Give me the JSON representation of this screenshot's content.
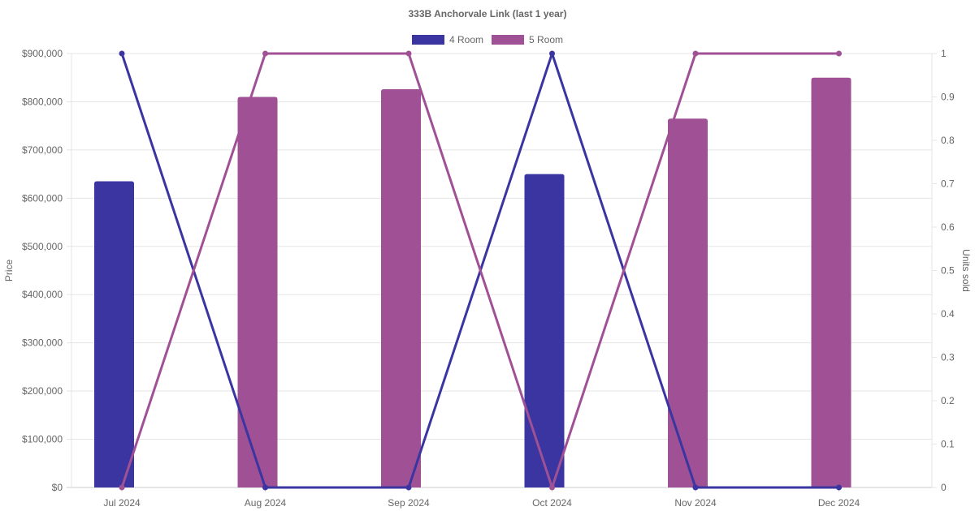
{
  "chart_data": {
    "type": "bar",
    "title": "333B Anchorvale Link (last 1 year)",
    "categories": [
      "Jul 2024",
      "Aug 2024",
      "Sep 2024",
      "Oct 2024",
      "Nov 2024",
      "Dec 2024"
    ],
    "ylabel": "Price",
    "y2label": "Units sold",
    "ylim": [
      0,
      900000
    ],
    "y2lim": [
      0,
      1
    ],
    "yticks": [
      "$0",
      "$100,000",
      "$200,000",
      "$300,000",
      "$400,000",
      "$500,000",
      "$600,000",
      "$700,000",
      "$800,000",
      "$900,000"
    ],
    "y2ticks": [
      "0",
      "0.1",
      "0.2",
      "0.3",
      "0.4",
      "0.5",
      "0.6",
      "0.7",
      "0.8",
      "0.9",
      "1"
    ],
    "grid": true,
    "legend_position": "top",
    "series": [
      {
        "name": "4 Room",
        "color": "#3a35a0",
        "price": [
          635000,
          null,
          null,
          650000,
          null,
          null
        ],
        "units_sold": [
          1,
          0,
          0,
          1,
          0,
          0
        ]
      },
      {
        "name": "5 Room",
        "color": "#a05195",
        "price": [
          null,
          810000,
          826000,
          null,
          765000,
          850000
        ],
        "units_sold": [
          0,
          1,
          1,
          0,
          1,
          1
        ]
      }
    ]
  }
}
